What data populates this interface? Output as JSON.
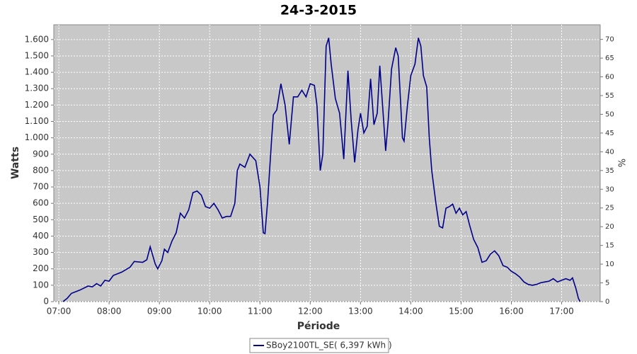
{
  "chart_data": {
    "type": "line",
    "title": "24-3-2015",
    "x_label": "Période",
    "y_label": "Watts",
    "y2_label": "%",
    "x": [
      "07:05",
      "07:10",
      "07:15",
      "07:25",
      "07:35",
      "07:40",
      "07:45",
      "07:50",
      "07:55",
      "08:00",
      "08:05",
      "08:15",
      "08:25",
      "08:30",
      "08:40",
      "08:45",
      "08:49",
      "08:55",
      "08:58",
      "09:03",
      "09:06",
      "09:10",
      "09:15",
      "09:20",
      "09:25",
      "09:30",
      "09:35",
      "09:40",
      "09:45",
      "09:50",
      "09:55",
      "10:00",
      "10:05",
      "10:10",
      "10:15",
      "10:20",
      "10:25",
      "10:30",
      "10:33",
      "10:36",
      "10:42",
      "10:48",
      "10:55",
      "11:00",
      "11:04",
      "11:06",
      "11:09",
      "11:14",
      "11:16",
      "11:20",
      "11:25",
      "11:30",
      "11:35",
      "11:40",
      "11:45",
      "11:50",
      "11:55",
      "12:00",
      "12:05",
      "12:08",
      "12:12",
      "12:15",
      "12:19",
      "12:22",
      "12:25",
      "12:30",
      "12:35",
      "12:40",
      "12:45",
      "12:49",
      "12:53",
      "12:57",
      "13:00",
      "13:04",
      "13:08",
      "13:12",
      "13:16",
      "13:20",
      "13:23",
      "13:27",
      "13:30",
      "13:33",
      "13:37",
      "13:42",
      "13:45",
      "13:50",
      "13:52",
      "13:56",
      "14:00",
      "14:05",
      "14:09",
      "14:12",
      "14:15",
      "14:19",
      "14:22",
      "14:25",
      "14:30",
      "14:34",
      "14:38",
      "14:42",
      "14:46",
      "14:50",
      "14:54",
      "14:58",
      "15:02",
      "15:06",
      "15:10",
      "15:15",
      "15:20",
      "15:25",
      "15:30",
      "15:35",
      "15:40",
      "15:45",
      "15:50",
      "15:55",
      "16:00",
      "16:05",
      "16:10",
      "16:15",
      "16:20",
      "16:25",
      "16:30",
      "16:35",
      "16:40",
      "16:45",
      "16:50",
      "16:55",
      "17:00",
      "17:05",
      "17:10",
      "17:13",
      "17:17",
      "17:20",
      "17:22"
    ],
    "series": [
      {
        "name": "SBoy2100TL_SE( 6,397 kWh )",
        "color": "#00008b",
        "values": [
          0,
          20,
          50,
          70,
          95,
          90,
          110,
          95,
          130,
          125,
          160,
          180,
          210,
          245,
          240,
          255,
          335,
          230,
          200,
          250,
          320,
          300,
          370,
          420,
          540,
          510,
          560,
          665,
          675,
          650,
          580,
          570,
          600,
          560,
          510,
          520,
          520,
          600,
          800,
          840,
          820,
          900,
          860,
          700,
          420,
          415,
          600,
          1000,
          1140,
          1170,
          1330,
          1200,
          960,
          1250,
          1250,
          1290,
          1250,
          1330,
          1320,
          1200,
          800,
          900,
          1560,
          1610,
          1450,
          1240,
          1150,
          870,
          1410,
          1100,
          850,
          1050,
          1150,
          1030,
          1070,
          1360,
          1080,
          1150,
          1440,
          1150,
          920,
          1100,
          1420,
          1550,
          1500,
          1000,
          980,
          1200,
          1380,
          1450,
          1610,
          1560,
          1380,
          1310,
          1000,
          800,
          600,
          460,
          450,
          570,
          580,
          595,
          540,
          570,
          530,
          550,
          470,
          380,
          330,
          240,
          250,
          290,
          310,
          280,
          220,
          210,
          185,
          170,
          150,
          120,
          105,
          100,
          105,
          115,
          120,
          125,
          140,
          120,
          130,
          140,
          130,
          145,
          80,
          20,
          0
        ]
      }
    ],
    "xlim": [
      "06:54",
      "17:46"
    ],
    "xticks": [
      "07:00",
      "08:00",
      "09:00",
      "10:00",
      "11:00",
      "12:00",
      "13:00",
      "14:00",
      "15:00",
      "16:00",
      "17:00"
    ],
    "ylim": [
      0,
      1690
    ],
    "yticks": [
      0,
      100,
      200,
      300,
      400,
      500,
      600,
      700,
      800,
      900,
      {
        "value": 1000,
        "label": "1.000"
      },
      {
        "value": 1100,
        "label": "1.100"
      },
      {
        "value": 1200,
        "label": "1.200"
      },
      {
        "value": 1300,
        "label": "1.300"
      },
      {
        "value": 1400,
        "label": "1.400"
      },
      {
        "value": 1500,
        "label": "1.500"
      },
      {
        "value": 1600,
        "label": "1.600"
      }
    ],
    "y2lim": [
      0,
      73.9
    ],
    "y2ticks": [
      0,
      5,
      10,
      15,
      20,
      25,
      30,
      35,
      40,
      45,
      50,
      55,
      60,
      65,
      70
    ],
    "grid": true,
    "legend": "bottom"
  }
}
